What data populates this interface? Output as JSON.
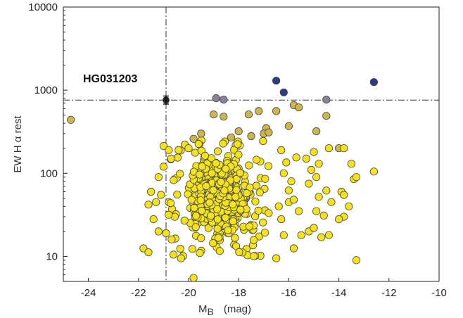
{
  "chart_data": {
    "type": "scatter",
    "title": "",
    "xlabel": "M",
    "xlabel_sub": "B",
    "xlabel_unit": "(mag)",
    "ylabel": "EW H α rest",
    "xlim": [
      -25,
      -10
    ],
    "ylim": [
      5,
      10000
    ],
    "yscale": "log",
    "x_ticks": [
      -24,
      -22,
      -20,
      -18,
      -16,
      -14,
      -12,
      -10
    ],
    "x_tick_labels": [
      "-24",
      "-22",
      "-20",
      "-18",
      "-16",
      "-14",
      "-12",
      "-10"
    ],
    "y_ticks": [
      10,
      100,
      1000,
      10000
    ],
    "y_tick_labels": [
      "10",
      "100",
      "1000",
      "10000"
    ],
    "grid": false,
    "reference_lines": {
      "x": -20.9,
      "y": 760
    },
    "annotation": {
      "text": "HG031203",
      "x": -20.9,
      "y": 760,
      "yerr_low": 680,
      "yerr_high": 850
    },
    "colors": {
      "yellow": "#f4e21a",
      "tan": "#cdb64e",
      "gray": "#8a8298",
      "blue": "#2e3a85",
      "highlight": "#222222"
    },
    "series": [
      {
        "color": "blue",
        "points": [
          [
            -16.5,
            1300
          ],
          [
            -12.6,
            1250
          ],
          [
            -16.2,
            940
          ]
        ]
      },
      {
        "color": "gray",
        "points": [
          [
            -18.9,
            800
          ],
          [
            -18.6,
            770
          ],
          [
            -14.5,
            770
          ]
        ]
      },
      {
        "color": "tan",
        "points": [
          [
            -24.7,
            440
          ],
          [
            -19.0,
            510
          ],
          [
            -18.6,
            480
          ],
          [
            -17.6,
            510
          ],
          [
            -17.2,
            560
          ],
          [
            -16.5,
            560
          ],
          [
            -15.8,
            660
          ],
          [
            -15.6,
            620
          ],
          [
            -14.5,
            490
          ],
          [
            -16.9,
            350
          ],
          [
            -16.0,
            370
          ],
          [
            -14.9,
            320
          ],
          [
            -19.5,
            300
          ],
          [
            -18.0,
            320
          ],
          [
            -17.5,
            280
          ],
          [
            -17.0,
            300
          ],
          [
            -16.8,
            310
          ],
          [
            -19.8,
            260
          ],
          [
            -18.3,
            270
          ],
          [
            -14.0,
            200
          ]
        ]
      },
      {
        "color": "yellow",
        "cloud": {
          "count": 640,
          "x_range": [
            -21.0,
            -16.8
          ],
          "y_range": [
            10,
            260
          ],
          "x_core": [
            -20.3,
            -17.2
          ],
          "y_core": [
            14,
            170
          ],
          "seed": 20301
        }
      },
      {
        "color": "yellow",
        "points": [
          [
            -21.8,
            12.5
          ],
          [
            -21.6,
            11.2
          ],
          [
            -21.6,
            42
          ],
          [
            -21.3,
            45
          ],
          [
            -21.1,
            55
          ],
          [
            -21.4,
            28
          ],
          [
            -21.2,
            20
          ],
          [
            -20.9,
            19
          ],
          [
            -20.6,
            10.5
          ],
          [
            -20.3,
            9.5
          ],
          [
            -19.8,
            5.5
          ],
          [
            -16.5,
            9.5
          ],
          [
            -16.0,
            62
          ],
          [
            -15.8,
            12.5
          ],
          [
            -15.5,
            18
          ],
          [
            -15.2,
            20
          ],
          [
            -15.0,
            22
          ],
          [
            -14.9,
            35
          ],
          [
            -15.1,
            110
          ],
          [
            -15.3,
            150
          ],
          [
            -14.8,
            130
          ],
          [
            -15.0,
            180
          ],
          [
            -14.4,
            200
          ],
          [
            -14.3,
            45
          ],
          [
            -14.6,
            31
          ],
          [
            -14.8,
            52
          ],
          [
            -15.2,
            75
          ],
          [
            -14.5,
            62
          ],
          [
            -14.9,
            90
          ],
          [
            -13.8,
            200
          ],
          [
            -13.9,
            60
          ],
          [
            -13.8,
            30
          ],
          [
            -14.0,
            28
          ],
          [
            -13.6,
            40
          ],
          [
            -14.4,
            18
          ],
          [
            -14.7,
            17
          ],
          [
            -13.4,
            85
          ],
          [
            -13.3,
            90
          ],
          [
            -13.5,
            130
          ],
          [
            -13.8,
            55
          ],
          [
            -13.3,
            9
          ],
          [
            -12.6,
            105
          ],
          [
            -16.3,
            28
          ],
          [
            -16.4,
            40
          ],
          [
            -16.0,
            45
          ],
          [
            -16.2,
            18
          ],
          [
            -15.6,
            35
          ],
          [
            -15.8,
            48
          ],
          [
            -15.9,
            80
          ],
          [
            -16.2,
            100
          ],
          [
            -16.1,
            135
          ],
          [
            -15.7,
            155
          ],
          [
            -16.3,
            190
          ],
          [
            -20.0,
            200
          ],
          [
            -20.4,
            190
          ],
          [
            -20.7,
            150
          ],
          [
            -21.0,
            120
          ],
          [
            -21.2,
            90
          ],
          [
            -21.5,
            60
          ]
        ]
      },
      {
        "color": "highlight",
        "points": [
          [
            -20.9,
            760
          ]
        ]
      }
    ]
  }
}
